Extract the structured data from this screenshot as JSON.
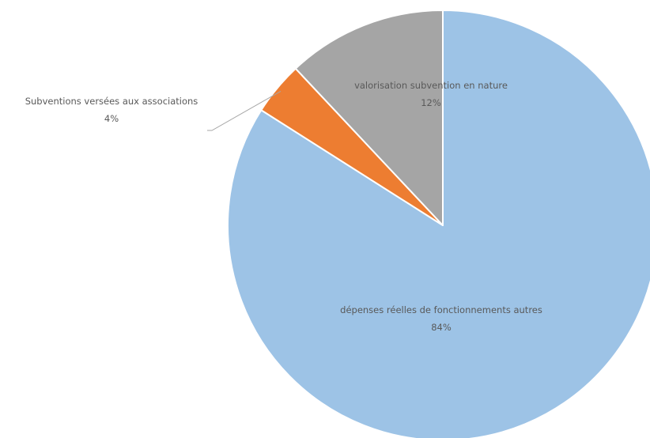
{
  "chart_data": {
    "type": "pie",
    "title": "",
    "start_angle_deg": 0,
    "direction": "clockwise",
    "slices": [
      {
        "label": "dépenses réelles de fonctionnements autres",
        "value": 84,
        "value_label": "84%",
        "color": "#9dc3e6"
      },
      {
        "label": "Subventions versées aux associations",
        "value": 4,
        "value_label": "4%",
        "color": "#ed7d31"
      },
      {
        "label": "valorisation subvention en nature",
        "value": 12,
        "value_label": "12%",
        "color": "#a5a5a5"
      }
    ]
  }
}
